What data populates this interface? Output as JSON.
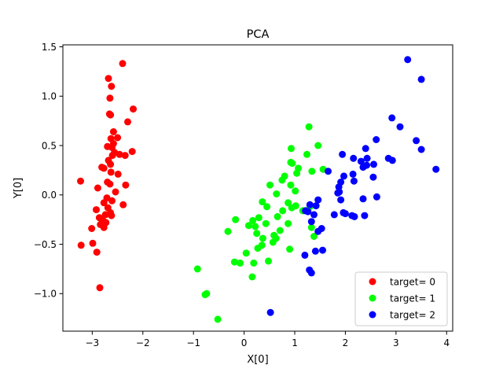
{
  "chart_data": {
    "type": "scatter",
    "title": "PCA",
    "xlabel": "X[0]",
    "ylabel": "Y[0]",
    "xlim": [
      -3.58,
      4.12
    ],
    "ylim": [
      -1.38,
      1.52
    ],
    "xticks": [
      -3,
      -2,
      -1,
      0,
      1,
      2,
      3,
      4
    ],
    "xtick_labels": [
      "−3",
      "−2",
      "−1",
      "0",
      "1",
      "2",
      "3",
      "4"
    ],
    "yticks": [
      -1.0,
      -0.5,
      0.0,
      0.5,
      1.0,
      1.5
    ],
    "ytick_labels": [
      "−1.0",
      "−0.5",
      "0.0",
      "0.5",
      "1.0",
      "1.5"
    ],
    "grid": false,
    "legend_position": "lower-right",
    "series": [
      {
        "name": "target= 0",
        "color": "#ff0000",
        "points": [
          [
            -2.4,
            1.33
          ],
          [
            -2.68,
            1.18
          ],
          [
            -2.62,
            1.1
          ],
          [
            -2.65,
            0.98
          ],
          [
            -2.66,
            0.82
          ],
          [
            -2.64,
            0.81
          ],
          [
            -2.19,
            0.87
          ],
          [
            -2.3,
            0.74
          ],
          [
            -2.58,
            0.64
          ],
          [
            -2.63,
            0.57
          ],
          [
            -2.5,
            0.58
          ],
          [
            -2.7,
            0.49
          ],
          [
            -2.58,
            0.52
          ],
          [
            -2.61,
            0.48
          ],
          [
            -2.56,
            0.43
          ],
          [
            -2.6,
            0.4
          ],
          [
            -2.46,
            0.41
          ],
          [
            -2.35,
            0.4
          ],
          [
            -2.21,
            0.44
          ],
          [
            -2.68,
            0.35
          ],
          [
            -2.64,
            0.31
          ],
          [
            -2.81,
            0.28
          ],
          [
            -2.77,
            0.27
          ],
          [
            -2.63,
            0.23
          ],
          [
            -2.49,
            0.21
          ],
          [
            -2.7,
            0.13
          ],
          [
            -2.65,
            0.11
          ],
          [
            -2.34,
            0.1
          ],
          [
            -2.89,
            0.07
          ],
          [
            -2.54,
            0.03
          ],
          [
            -2.71,
            -0.03
          ],
          [
            -2.61,
            -0.06
          ],
          [
            -2.77,
            -0.08
          ],
          [
            -2.39,
            -0.1
          ],
          [
            -2.92,
            -0.15
          ],
          [
            -2.69,
            -0.13
          ],
          [
            -2.64,
            -0.18
          ],
          [
            -2.74,
            -0.2
          ],
          [
            -2.62,
            -0.21
          ],
          [
            -2.86,
            -0.23
          ],
          [
            -2.8,
            -0.25
          ],
          [
            -2.73,
            -0.28
          ],
          [
            -2.84,
            -0.3
          ],
          [
            -2.77,
            -0.33
          ],
          [
            -3.23,
            0.14
          ],
          [
            -3.01,
            -0.34
          ],
          [
            -3.22,
            -0.51
          ],
          [
            -2.99,
            -0.49
          ],
          [
            -2.91,
            -0.58
          ],
          [
            -2.85,
            -0.94
          ]
        ]
      },
      {
        "name": "target= 1",
        "color": "#00ff00",
        "points": [
          [
            1.28,
            0.69
          ],
          [
            1.46,
            0.5
          ],
          [
            0.93,
            0.47
          ],
          [
            1.24,
            0.41
          ],
          [
            0.92,
            0.33
          ],
          [
            1.07,
            0.27
          ],
          [
            0.95,
            0.32
          ],
          [
            1.56,
            0.26
          ],
          [
            1.34,
            0.24
          ],
          [
            1.04,
            0.22
          ],
          [
            0.8,
            0.19
          ],
          [
            0.75,
            0.15
          ],
          [
            0.51,
            0.1
          ],
          [
            0.92,
            0.1
          ],
          [
            1.01,
            0.04
          ],
          [
            0.64,
            0.01
          ],
          [
            0.36,
            -0.07
          ],
          [
            0.87,
            -0.08
          ],
          [
            1.02,
            -0.11
          ],
          [
            0.45,
            -0.12
          ],
          [
            0.94,
            -0.13
          ],
          [
            0.76,
            -0.16
          ],
          [
            1.16,
            -0.16
          ],
          [
            1.3,
            -0.12
          ],
          [
            -0.17,
            -0.25
          ],
          [
            0.29,
            -0.23
          ],
          [
            0.17,
            -0.26
          ],
          [
            0.66,
            -0.22
          ],
          [
            0.87,
            -0.29
          ],
          [
            0.43,
            -0.29
          ],
          [
            0.09,
            -0.31
          ],
          [
            0.22,
            -0.32
          ],
          [
            1.33,
            -0.33
          ],
          [
            0.25,
            -0.39
          ],
          [
            0.71,
            -0.36
          ],
          [
            0.59,
            -0.41
          ],
          [
            -0.32,
            -0.37
          ],
          [
            0.63,
            -0.44
          ],
          [
            0.37,
            -0.44
          ],
          [
            1.38,
            -0.42
          ],
          [
            0.57,
            -0.48
          ],
          [
            0.27,
            -0.54
          ],
          [
            0.35,
            -0.51
          ],
          [
            0.9,
            -0.55
          ],
          [
            0.04,
            -0.59
          ],
          [
            0.48,
            -0.67
          ],
          [
            -0.19,
            -0.68
          ],
          [
            -0.08,
            -0.69
          ],
          [
            0.19,
            -0.69
          ],
          [
            0.16,
            -0.83
          ],
          [
            -0.92,
            -0.75
          ],
          [
            -0.74,
            -1.0
          ],
          [
            -0.77,
            -1.01
          ],
          [
            -0.52,
            -1.26
          ]
        ]
      },
      {
        "name": "target= 2",
        "color": "#0000ff",
        "points": [
          [
            3.23,
            1.37
          ],
          [
            3.5,
            1.17
          ],
          [
            2.92,
            0.78
          ],
          [
            3.08,
            0.69
          ],
          [
            2.61,
            0.56
          ],
          [
            3.4,
            0.55
          ],
          [
            2.4,
            0.47
          ],
          [
            3.5,
            0.46
          ],
          [
            1.94,
            0.41
          ],
          [
            2.16,
            0.37
          ],
          [
            2.43,
            0.37
          ],
          [
            2.85,
            0.37
          ],
          [
            2.93,
            0.35
          ],
          [
            2.31,
            0.34
          ],
          [
            2.42,
            0.3
          ],
          [
            2.56,
            0.31
          ],
          [
            2.35,
            0.28
          ],
          [
            1.66,
            0.24
          ],
          [
            3.79,
            0.26
          ],
          [
            2.15,
            0.21
          ],
          [
            2.55,
            0.18
          ],
          [
            1.97,
            0.19
          ],
          [
            2.17,
            0.14
          ],
          [
            1.91,
            0.13
          ],
          [
            1.87,
            0.08
          ],
          [
            1.88,
            0.03
          ],
          [
            1.85,
            0.02
          ],
          [
            1.91,
            -0.05
          ],
          [
            2.62,
            -0.02
          ],
          [
            2.35,
            -0.04
          ],
          [
            1.46,
            -0.05
          ],
          [
            1.3,
            -0.1
          ],
          [
            1.42,
            -0.11
          ],
          [
            1.21,
            -0.16
          ],
          [
            1.26,
            -0.17
          ],
          [
            1.96,
            -0.18
          ],
          [
            1.38,
            -0.2
          ],
          [
            1.78,
            -0.2
          ],
          [
            2.13,
            -0.21
          ],
          [
            2.18,
            -0.22
          ],
          [
            2.38,
            -0.21
          ],
          [
            2.0,
            -0.19
          ],
          [
            1.33,
            -0.27
          ],
          [
            1.53,
            -0.34
          ],
          [
            1.46,
            -0.37
          ],
          [
            1.55,
            -0.56
          ],
          [
            1.41,
            -0.57
          ],
          [
            1.2,
            -0.61
          ],
          [
            1.29,
            -0.76
          ],
          [
            1.33,
            -0.79
          ],
          [
            0.52,
            -1.19
          ]
        ]
      }
    ]
  }
}
